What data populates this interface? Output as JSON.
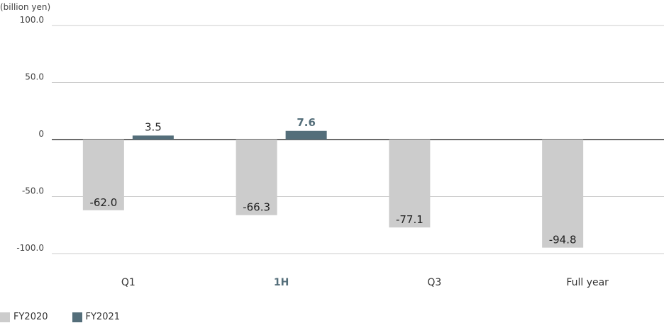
{
  "chart_data": {
    "type": "bar",
    "unit_label": "(billion yen)",
    "categories": [
      "Q1",
      "1H",
      "Q3",
      "Full year"
    ],
    "highlight_category": "1H",
    "series": [
      {
        "name": "FY2020",
        "values": [
          -62.0,
          -66.3,
          -77.1,
          -94.8
        ],
        "color": "#cccccc"
      },
      {
        "name": "FY2021",
        "values": [
          3.5,
          7.6,
          null,
          null
        ],
        "color": "#546e7a"
      }
    ],
    "value_labels": [
      [
        "-62.0",
        "-66.3",
        "-77.1",
        "-94.8"
      ],
      [
        "3.5",
        "7.6",
        "",
        ""
      ]
    ],
    "yticks": [
      100,
      50,
      0,
      -50,
      -100
    ],
    "ytick_labels": [
      "100.0",
      "50.0",
      "0",
      "-50.0",
      "-100.0"
    ],
    "ylim": [
      -100,
      100
    ],
    "grid": true,
    "legend_position": "bottom-left",
    "highlight_color": "#546e7a"
  }
}
